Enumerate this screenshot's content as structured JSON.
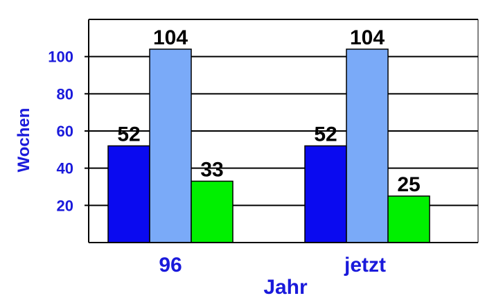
{
  "chart_data": {
    "type": "bar",
    "categories": [
      "96",
      "jetzt"
    ],
    "series": [
      {
        "values": [
          52,
          52
        ],
        "color": "#0a0af0"
      },
      {
        "values": [
          104,
          104
        ],
        "color": "#7aaaf8"
      },
      {
        "values": [
          33,
          25
        ],
        "color": "#00f000"
      }
    ],
    "xlabel": "Jahr",
    "ylabel": "Wochen",
    "ylim": [
      0,
      120
    ],
    "yticks": [
      20,
      40,
      60,
      80,
      100
    ],
    "grid": true,
    "legend": "none",
    "data_labels": true
  }
}
